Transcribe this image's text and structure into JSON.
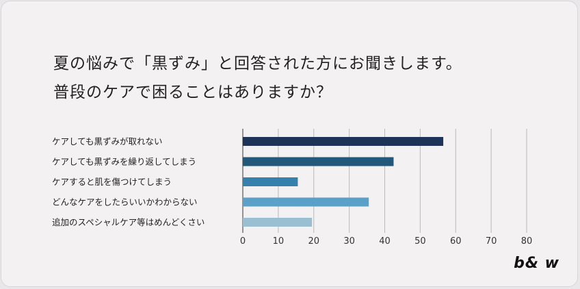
{
  "title_line1": "夏の悩みで「黒ずみ」と回答された方にお聞きします。",
  "title_line2": "普段のケアで困ることはありますか？",
  "logo": "b& w",
  "chart_data": {
    "type": "bar",
    "orientation": "horizontal",
    "categories": [
      "ケアしても黒ずみが取れない",
      "ケアしても黒ずみを繰り返してしまう",
      "ケアすると肌を傷つけてしまう",
      "どんなケアをしたらいいかわからない",
      "追加のスペシャルケア等はめんどくさい"
    ],
    "values": [
      56.5,
      42.5,
      15.5,
      35.5,
      19.5
    ],
    "colors": [
      "#1e3358",
      "#22587a",
      "#3580ac",
      "#5ba0c6",
      "#9bbfd2"
    ],
    "xlim": [
      0,
      80
    ],
    "xticks": [
      0,
      10,
      20,
      30,
      40,
      50,
      60,
      70,
      80
    ],
    "grid": true,
    "title": "",
    "xlabel": "",
    "ylabel": ""
  }
}
